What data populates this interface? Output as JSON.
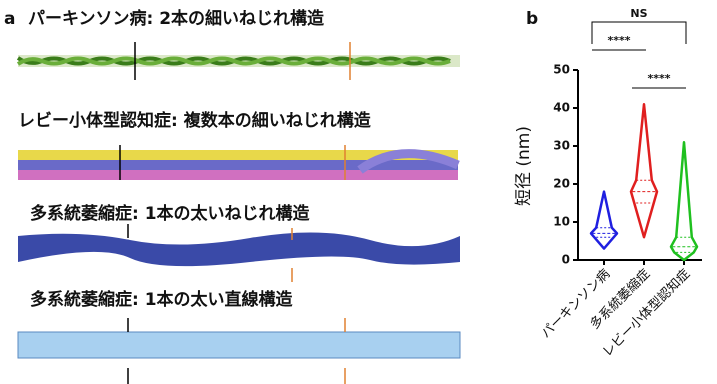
{
  "panel_a": {
    "label": "a",
    "rows": [
      "パーキンソン病: 2本の細いねじれ構造",
      "レビー小体型認知症: 複数本の細いねじれ構造",
      "多系統萎縮症: 1本の太いねじれ構造",
      "多系統萎縮症: 1本の太い直線構造"
    ]
  },
  "chart_data": {
    "type": "violin",
    "panel_label": "b",
    "ylabel": "短径 (nm)",
    "categories": [
      "パーキンソン病",
      "多系統萎縮症",
      "レビー小体型認知症"
    ],
    "colors": [
      "#1f1fe0",
      "#e01f1f",
      "#1fc01f"
    ],
    "stats": [
      {
        "min": 3,
        "q1": 6,
        "median": 7,
        "q3": 8.5,
        "max": 18
      },
      {
        "min": 6,
        "q1": 15,
        "median": 18,
        "q3": 21,
        "max": 41
      },
      {
        "min": 0,
        "q1": 2,
        "median": 3.5,
        "q3": 6,
        "max": 31
      }
    ],
    "ylim": [
      0,
      50
    ],
    "yticks": [
      0,
      10,
      20,
      30,
      40,
      50
    ],
    "comparisons": [
      {
        "label": "NS",
        "between": [
          0,
          2
        ]
      },
      {
        "label": "****",
        "between": [
          0,
          1
        ]
      },
      {
        "label": "****",
        "between": [
          1,
          2
        ]
      }
    ]
  }
}
